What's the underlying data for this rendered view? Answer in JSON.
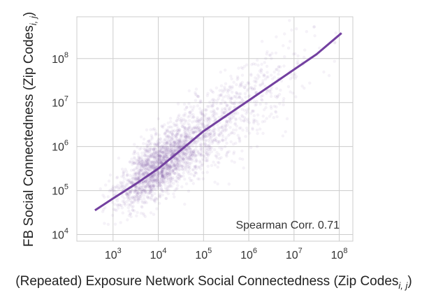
{
  "chart_data": {
    "type": "scatter",
    "title": "",
    "xlabel": "(Repeated) Exposure Network Social Connectedness (Zip Codes",
    "xlabel_sub": "i, j",
    "xlabel_end": ")",
    "ylabel": "FB Social Connectedness (Zip Codes",
    "ylabel_sub": "i, j",
    "ylabel_end": ")",
    "x_scale": "log",
    "y_scale": "log",
    "xlim_exp": [
      2.2,
      8.3
    ],
    "ylim_exp": [
      3.85,
      8.95
    ],
    "x_ticks": [
      3,
      4,
      5,
      6,
      7,
      8
    ],
    "y_ticks": [
      4,
      5,
      6,
      7,
      8
    ],
    "tick_base": "10",
    "grid": true,
    "colors": {
      "accent": "#7340a0",
      "points": "#7340a0",
      "grid": "#cccccc",
      "frame": "#cccccc"
    },
    "annotation": "Spearman Corr. 0.71",
    "annotation_position": "bottom-right",
    "scatter_description": "dense point cloud centred near x=10^4, y=10^5.6",
    "scatter_cloud": [
      {
        "x_center_exp": 4.0,
        "y_center_exp": 5.55,
        "spread_x": 0.45,
        "spread_y": 0.42,
        "weight": 0.6
      },
      {
        "x_center_exp": 4.9,
        "y_center_exp": 6.25,
        "spread_x": 0.55,
        "spread_y": 0.55,
        "weight": 0.25
      },
      {
        "x_center_exp": 6.0,
        "y_center_exp": 7.0,
        "spread_x": 0.75,
        "spread_y": 0.7,
        "weight": 0.15
      }
    ],
    "fit_line": {
      "name": "fit",
      "x_exp": [
        2.6,
        3.0,
        3.5,
        4.0,
        4.5,
        5.0,
        5.5,
        6.0,
        6.5,
        7.0,
        7.5,
        8.05
      ],
      "y_exp": [
        4.55,
        4.82,
        5.15,
        5.5,
        5.92,
        6.35,
        6.7,
        7.05,
        7.4,
        7.75,
        8.1,
        8.58
      ]
    }
  }
}
